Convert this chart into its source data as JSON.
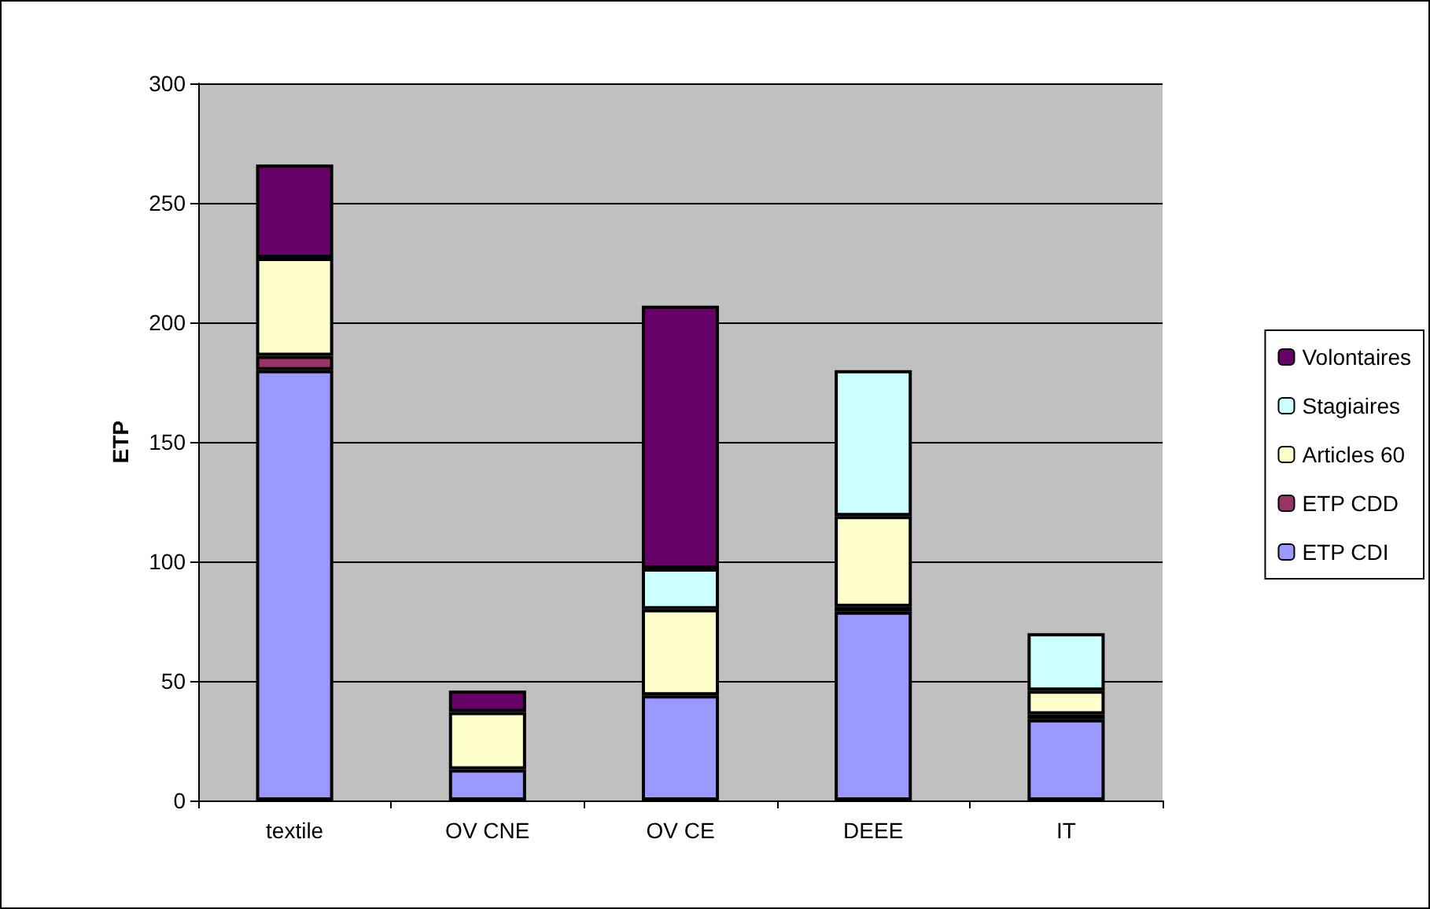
{
  "chart_data": {
    "type": "bar",
    "stacked": true,
    "ylabel": "ETP",
    "categories": [
      "textile",
      "OV CNE",
      "OV CE",
      "DEEE",
      "IT"
    ],
    "series": [
      {
        "name": "ETP CDI",
        "color": "#9999ff",
        "values": [
          180,
          13,
          44,
          79,
          34
        ]
      },
      {
        "name": "ETP CDD",
        "color": "#993366",
        "values": [
          6,
          0,
          0,
          2,
          2
        ]
      },
      {
        "name": "Articles 60",
        "color": "#ffffcc",
        "values": [
          41,
          24,
          36,
          38,
          10
        ]
      },
      {
        "name": "Stagiaires",
        "color": "#ccffff",
        "values": [
          0,
          0,
          17,
          61,
          24
        ]
      },
      {
        "name": "Volontaires",
        "color": "#660066",
        "values": [
          39,
          9,
          110,
          0,
          0
        ]
      }
    ],
    "ylim": [
      0,
      300
    ],
    "yticks": [
      0,
      50,
      100,
      150,
      200,
      250,
      300
    ],
    "grid": "y",
    "legend": "right"
  }
}
